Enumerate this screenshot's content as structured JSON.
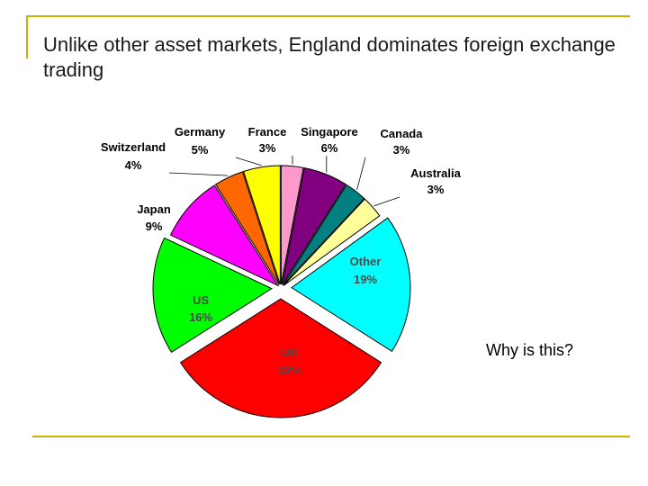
{
  "slide": {
    "title": "Unlike other asset markets, England dominates foreign exchange trading",
    "note": "Why is this?"
  },
  "chart_data": {
    "type": "pie",
    "exploded": true,
    "slices": [
      {
        "name": "France",
        "value": 3,
        "label": "3%",
        "color": "#ff99cc"
      },
      {
        "name": "Singapore",
        "value": 6,
        "label": "6%",
        "color": "#800080"
      },
      {
        "name": "Canada",
        "value": 3,
        "label": "3%",
        "color": "#008080"
      },
      {
        "name": "Australia",
        "value": 3,
        "label": "3%",
        "color": "#ffff99"
      },
      {
        "name": "Other",
        "value": 19,
        "label": "19%",
        "color": "#00ffff"
      },
      {
        "name": "UK",
        "value": 32,
        "label": "32%",
        "color": "#ff0000"
      },
      {
        "name": "US",
        "value": 16,
        "label": "16%",
        "color": "#00ff00"
      },
      {
        "name": "Japan",
        "value": 9,
        "label": "9%",
        "color": "#ff00ff"
      },
      {
        "name": "Switzerland",
        "value": 4,
        "label": "4%",
        "color": "#ff6600"
      },
      {
        "name": "Germany",
        "value": 5,
        "label": "5%",
        "color": "#ffff00"
      }
    ]
  }
}
